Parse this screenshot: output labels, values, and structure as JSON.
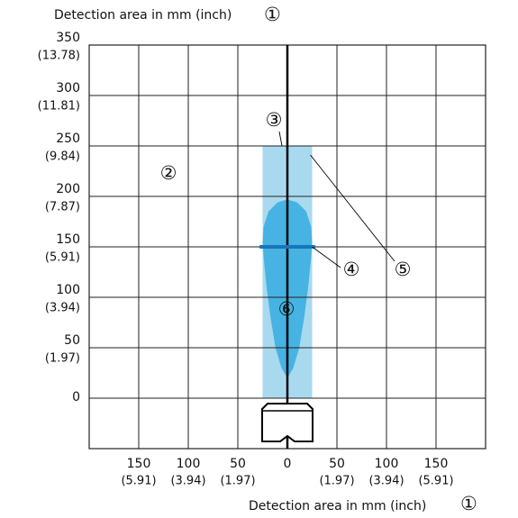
{
  "chart_data": {
    "type": "detection-area",
    "y_label": "Detection area in mm (inch)",
    "y_label_marker": "①",
    "x_label": "Detection area in mm (inch)",
    "x_label_marker": "①",
    "xlim": [
      -200,
      200
    ],
    "ylim": [
      -50,
      350
    ],
    "xticks": [
      {
        "value": -150,
        "label": "150",
        "inch_label": "(5.91)"
      },
      {
        "value": -100,
        "label": "100",
        "inch_label": "(3.94)"
      },
      {
        "value": -50,
        "label": "50",
        "inch_label": "(1.97)"
      },
      0,
      {
        "value": 50,
        "label": "50",
        "inch_label": "(1.97)"
      },
      {
        "value": 100,
        "label": "100",
        "inch_label": "(3.94)"
      },
      {
        "value": 150,
        "label": "150",
        "inch_label": "(5.91)"
      }
    ],
    "yticks": [
      0,
      {
        "value": 50,
        "label": "50",
        "inch_label": "(1.97)"
      },
      {
        "value": 100,
        "label": "100",
        "inch_label": "(3.94)"
      },
      {
        "value": 150,
        "label": "150",
        "inch_label": "(5.91)"
      },
      {
        "value": 200,
        "label": "200",
        "inch_label": "(7.87)"
      },
      {
        "value": 250,
        "label": "250",
        "inch_label": "(9.84)"
      },
      {
        "value": 300,
        "label": "300",
        "inch_label": "(11.81)"
      },
      {
        "value": 350,
        "label": "350",
        "inch_label": "(13.78)"
      }
    ],
    "grid": true,
    "sensing_range": {
      "x": [
        -25,
        25
      ],
      "y": [
        0,
        250
      ],
      "color": "#a9d9ef",
      "marker": "⑤"
    },
    "detection_field": {
      "x": [
        0,
        6,
        12,
        17,
        21,
        24,
        25,
        24,
        19,
        10,
        0,
        -10,
        -19,
        -24,
        -25,
        -24,
        -21,
        -17,
        -12,
        -6
      ],
      "y": [
        20,
        30,
        50,
        80,
        110,
        140,
        155,
        170,
        185,
        194,
        197,
        194,
        185,
        170,
        155,
        140,
        110,
        80,
        50,
        30
      ],
      "color": "#46b3e2",
      "marker": "⑥"
    },
    "focus_line": {
      "x": [
        -25,
        25
      ],
      "y": 150,
      "color": "#1877b8",
      "marker": "④"
    },
    "background_marker": "②",
    "range_end_marker": "③"
  }
}
